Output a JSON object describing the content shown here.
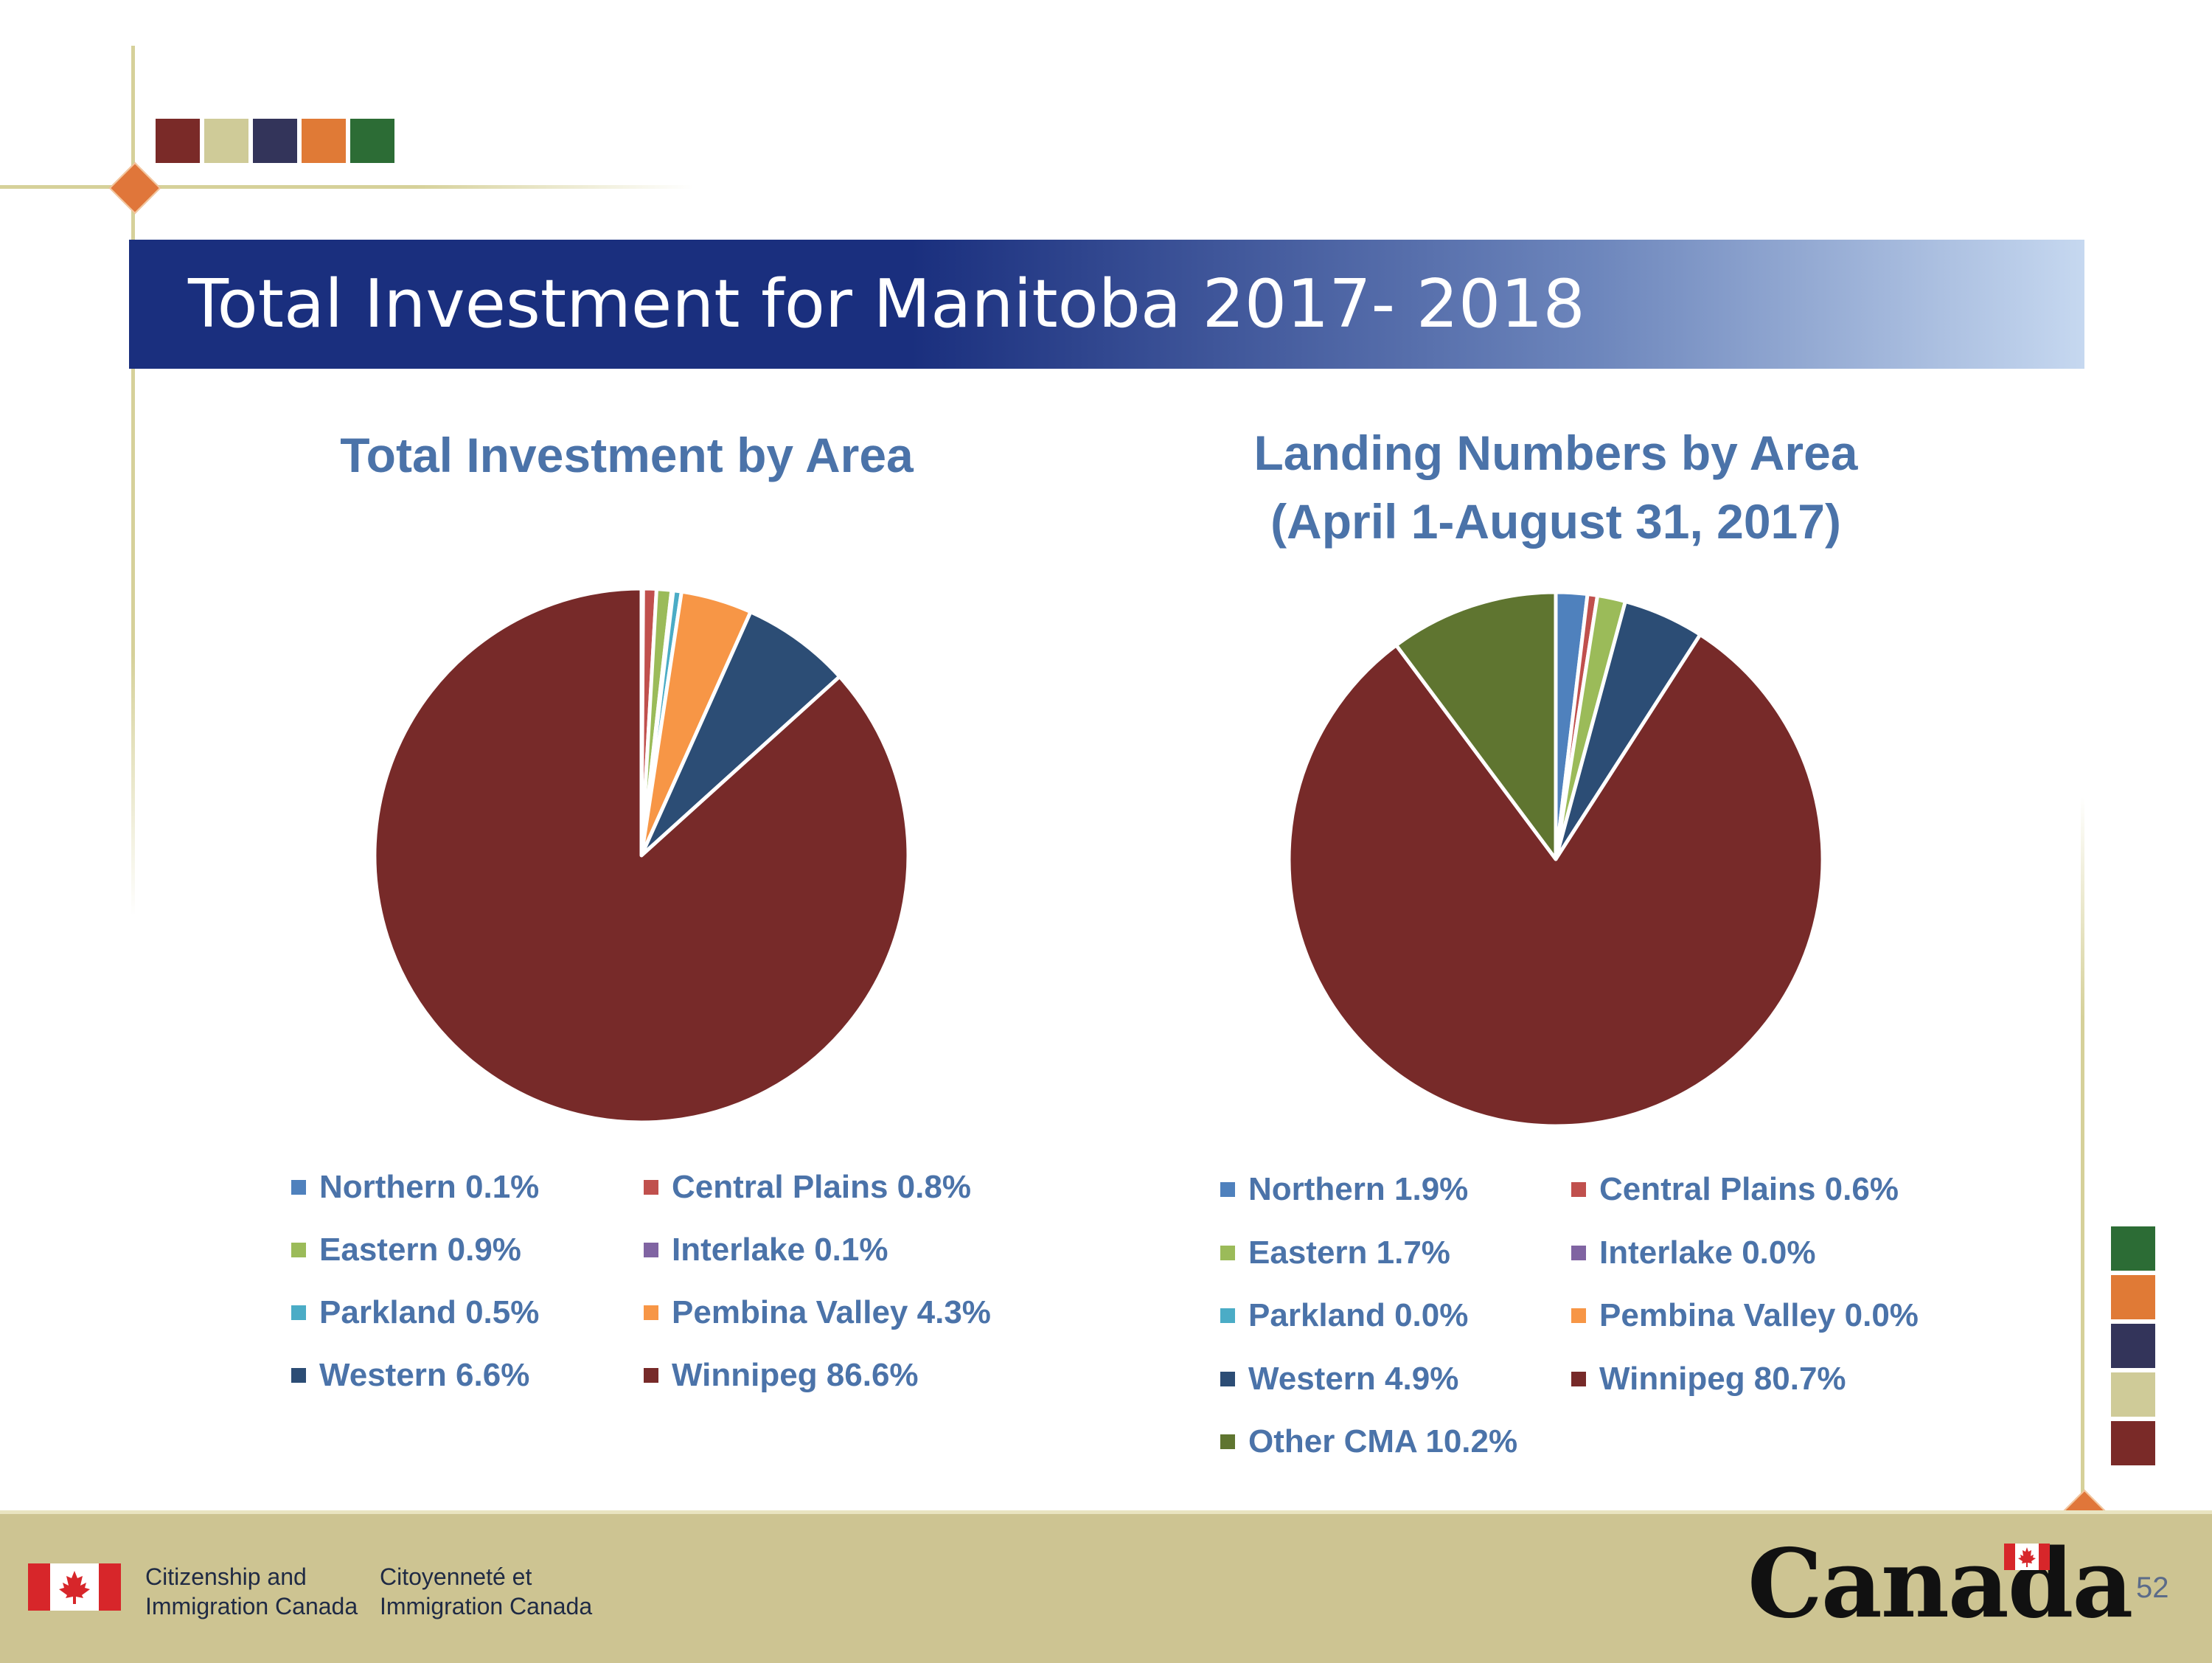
{
  "slide": {
    "title": "Total Investment for Manitoba 2017- 2018",
    "page_number": "52"
  },
  "palette": {
    "top_squares": [
      "#7a2a28",
      "#cfcb98",
      "#33345a",
      "#e07a36",
      "#2c6c35"
    ],
    "side_squares": [
      "#2c6c35",
      "#e07a36",
      "#33345a",
      "#cfcb98",
      "#7a2a28"
    ]
  },
  "footer": {
    "dept_en_line1": "Citizenship and",
    "dept_en_line2": "Immigration Canada",
    "dept_fr_line1": "Citoyenneté et",
    "dept_fr_line2": "Immigration Canada",
    "wordmark": "Canada"
  },
  "chart_data": [
    {
      "type": "pie",
      "title": "Total Investment by Area",
      "categories": [
        "Northern",
        "Central Plains",
        "Eastern",
        "Interlake",
        "Parkland",
        "Pembina Valley",
        "Western",
        "Winnipeg"
      ],
      "values": [
        0.1,
        0.8,
        0.9,
        0.1,
        0.5,
        4.3,
        6.6,
        86.6
      ],
      "colors": [
        "#4f81bd",
        "#c0504d",
        "#9bbb59",
        "#8064a2",
        "#4bacc6",
        "#f79646",
        "#2c4d75",
        "#772a29"
      ],
      "legend": [
        "Northern 0.1%",
        "Central Plains 0.8%",
        "Eastern 0.9%",
        "Interlake 0.1%",
        "Parkland 0.5%",
        "Pembina Valley 4.3%",
        "Western 6.6%",
        "Winnipeg 86.6%"
      ],
      "legend_position": "bottom"
    },
    {
      "type": "pie",
      "title_line1": "Landing Numbers by Area",
      "title_line2": "(April 1-August 31, 2017)",
      "categories": [
        "Northern",
        "Central Plains",
        "Eastern",
        "Interlake",
        "Parkland",
        "Pembina Valley",
        "Western",
        "Winnipeg",
        "Other CMA"
      ],
      "values": [
        1.9,
        0.6,
        1.7,
        0.0,
        0.0,
        0.0,
        4.9,
        80.7,
        10.2
      ],
      "colors": [
        "#4f81bd",
        "#c0504d",
        "#9bbb59",
        "#8064a2",
        "#4bacc6",
        "#f79646",
        "#2c4d75",
        "#772a29",
        "#5f7530"
      ],
      "legend": [
        "Northern 1.9%",
        "Central Plains 0.6%",
        "Eastern 1.7%",
        "Interlake 0.0%",
        "Parkland 0.0%",
        "Pembina Valley 0.0%",
        "Western 4.9%",
        "Winnipeg 80.7%",
        "Other CMA 10.2%"
      ],
      "legend_position": "bottom"
    }
  ]
}
